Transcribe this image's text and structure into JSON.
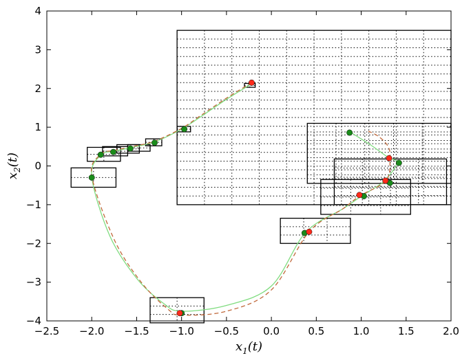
{
  "chart_data": {
    "type": "scatter",
    "title": "",
    "xlabel": "x_1(t)",
    "ylabel": "x_2(t)",
    "xlabel_parts": {
      "main": "x",
      "sub": "1",
      "tail": "(t)"
    },
    "ylabel_parts": {
      "main": "x",
      "sub": "2",
      "tail": "(t)"
    },
    "xlim": [
      -2.5,
      2.0
    ],
    "ylim": [
      -4,
      4
    ],
    "grid": false,
    "x_ticks": [
      -2.5,
      -2.0,
      -1.5,
      -1.0,
      -0.5,
      0.0,
      0.5,
      1.0,
      1.5,
      2.0
    ],
    "x_tick_labels": [
      "−2.5",
      "−2.0",
      "−1.5",
      "−1.0",
      "−0.5",
      "0.0",
      "0.5",
      "1.0",
      "1.5",
      "2.0"
    ],
    "y_ticks": [
      -4,
      -3,
      -2,
      -1,
      0,
      1,
      2,
      3,
      4
    ],
    "y_tick_labels": [
      "−4",
      "−3",
      "−2",
      "−1",
      "0",
      "1",
      "2",
      "3",
      "4"
    ],
    "colors": {
      "red_point": "#ff2a1a",
      "green_point": "#1a8c1a",
      "green_curve": "#7fdc7f",
      "red_curve": "#c0683a",
      "box": "#000000"
    },
    "series": [
      {
        "kind": "curve",
        "style": "solid",
        "color_key": "green_curve",
        "points": [
          [
            -0.22,
            2.12
          ],
          [
            -0.5,
            1.72
          ],
          [
            -0.8,
            1.25
          ],
          [
            -1.0,
            0.95
          ],
          [
            -1.3,
            0.62
          ],
          [
            -1.55,
            0.48
          ],
          [
            -1.75,
            0.38
          ],
          [
            -1.9,
            0.28
          ],
          [
            -2.0,
            -0.28
          ],
          [
            -1.8,
            -1.8
          ],
          [
            -1.5,
            -2.9
          ],
          [
            -1.2,
            -3.55
          ],
          [
            -1.0,
            -3.75
          ],
          [
            -0.5,
            -3.6
          ],
          [
            0.0,
            -3.1
          ],
          [
            0.38,
            -1.72
          ],
          [
            0.8,
            -1.1
          ],
          [
            1.02,
            -0.75
          ],
          [
            1.25,
            -0.4
          ],
          [
            1.4,
            0.08
          ],
          [
            1.3,
            0.22
          ],
          [
            1.1,
            0.55
          ],
          [
            0.88,
            0.87
          ]
        ]
      },
      {
        "kind": "curve",
        "style": "dashed",
        "color_key": "red_curve",
        "points": [
          [
            -0.22,
            2.15
          ],
          [
            -0.5,
            1.75
          ],
          [
            -0.8,
            1.28
          ],
          [
            -1.0,
            0.97
          ],
          [
            -1.3,
            0.64
          ],
          [
            -1.55,
            0.5
          ],
          [
            -1.75,
            0.4
          ],
          [
            -1.9,
            0.3
          ],
          [
            -2.0,
            -0.25
          ],
          [
            -1.75,
            -1.9
          ],
          [
            -1.45,
            -3.0
          ],
          [
            -1.15,
            -3.7
          ],
          [
            -1.0,
            -3.85
          ],
          [
            -0.5,
            -3.75
          ],
          [
            0.0,
            -3.2
          ],
          [
            0.42,
            -1.7
          ],
          [
            0.8,
            -1.1
          ],
          [
            0.98,
            -0.78
          ],
          [
            1.28,
            -0.37
          ],
          [
            1.32,
            0.2
          ],
          [
            1.3,
            0.5
          ],
          [
            1.2,
            0.75
          ],
          [
            1.08,
            0.9
          ]
        ]
      },
      {
        "kind": "points",
        "color_key": "green_point",
        "points": [
          [
            -0.97,
            0.95
          ],
          [
            -1.3,
            0.6
          ],
          [
            -1.57,
            0.45
          ],
          [
            -1.76,
            0.36
          ],
          [
            -1.9,
            0.29
          ],
          [
            -2.0,
            -0.3
          ],
          [
            -1.0,
            -3.8
          ],
          [
            0.37,
            -1.73
          ],
          [
            1.03,
            -0.78
          ],
          [
            1.32,
            -0.44
          ],
          [
            1.42,
            0.08
          ],
          [
            0.87,
            0.86
          ]
        ]
      },
      {
        "kind": "points",
        "color_key": "red_point",
        "points": [
          [
            -0.22,
            2.15
          ],
          [
            -1.02,
            -3.8
          ],
          [
            0.42,
            -1.7
          ],
          [
            0.98,
            -0.75
          ],
          [
            1.27,
            -0.38
          ],
          [
            1.31,
            0.2
          ]
        ]
      }
    ],
    "boxes": [
      {
        "x": [
          -1.05,
          2.0
        ],
        "y": [
          -1.0,
          3.5
        ]
      },
      {
        "x": [
          0.4,
          2.0
        ],
        "y": [
          -0.45,
          1.1
        ]
      },
      {
        "x": [
          0.7,
          1.95
        ],
        "y": [
          -1.0,
          0.18
        ]
      },
      {
        "x": [
          0.55,
          1.55
        ],
        "y": [
          -1.25,
          -0.35
        ]
      },
      {
        "x": [
          0.1,
          0.88
        ],
        "y": [
          -2.0,
          -1.35
        ]
      },
      {
        "x": [
          -1.35,
          -0.75
        ],
        "y": [
          -4.05,
          -3.4
        ]
      },
      {
        "x": [
          -2.23,
          -1.73
        ],
        "y": [
          -0.55,
          -0.05
        ]
      },
      {
        "x": [
          -2.05,
          -1.68
        ],
        "y": [
          0.12,
          0.48
        ]
      },
      {
        "x": [
          -1.88,
          -1.6
        ],
        "y": [
          0.26,
          0.5
        ]
      },
      {
        "x": [
          -1.72,
          -1.47
        ],
        "y": [
          0.33,
          0.55
        ]
      },
      {
        "x": [
          -1.6,
          -1.35
        ],
        "y": [
          0.38,
          0.55
        ]
      },
      {
        "x": [
          -1.4,
          -1.22
        ],
        "y": [
          0.52,
          0.7
        ]
      },
      {
        "x": [
          -1.05,
          -0.9
        ],
        "y": [
          0.88,
          1.02
        ]
      },
      {
        "x": [
          -0.3,
          -0.18
        ],
        "y": [
          2.03,
          2.13
        ]
      }
    ]
  }
}
